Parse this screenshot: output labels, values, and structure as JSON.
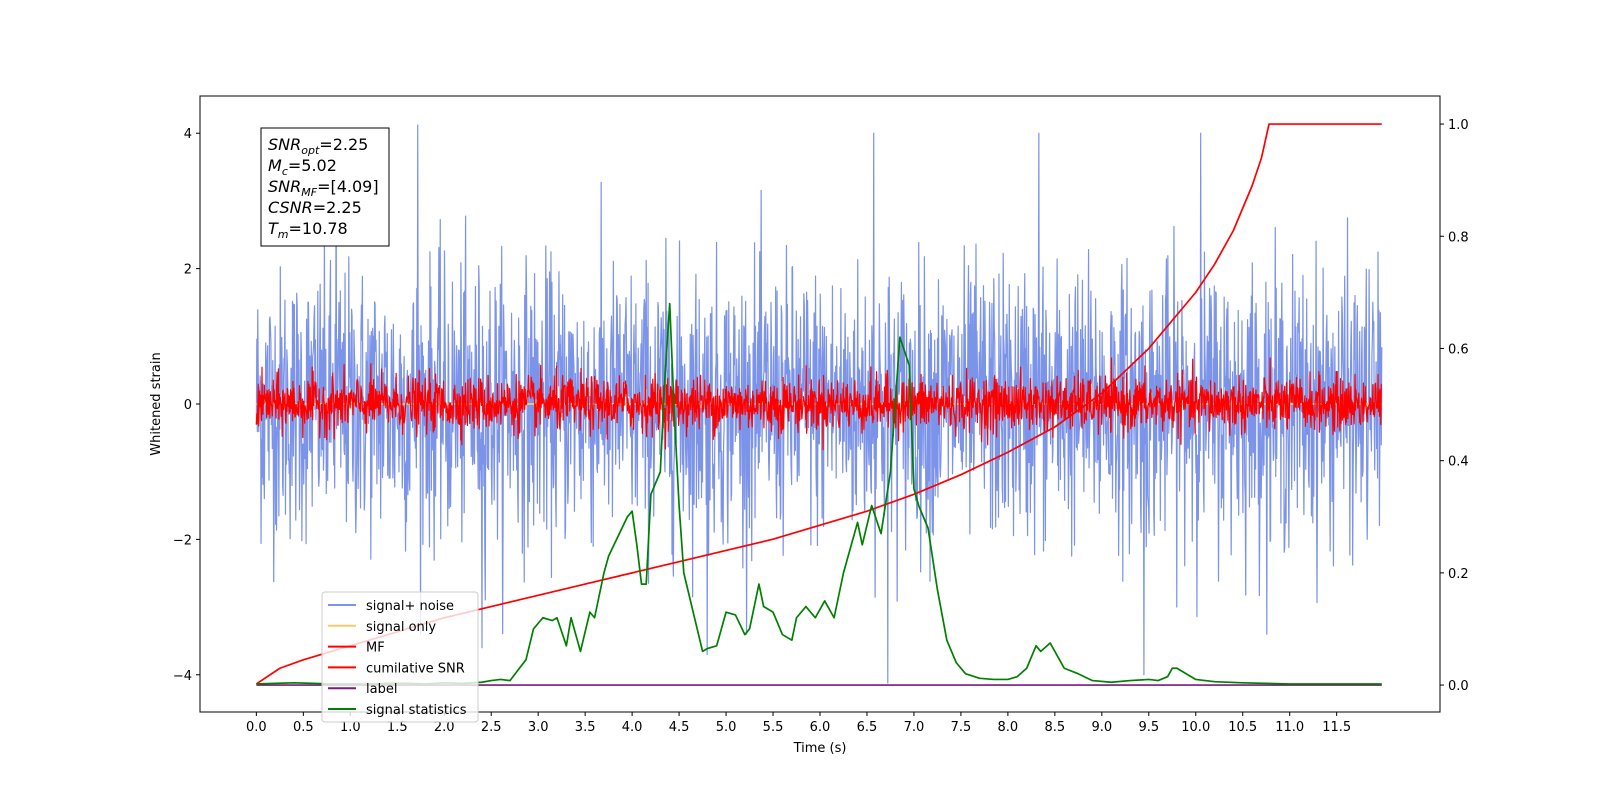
{
  "chart_data": {
    "type": "line",
    "title": "",
    "xlabel": "Time (s)",
    "ylabel": "Whitened strain",
    "y2label": "",
    "xlim": [
      -0.6,
      12.6
    ],
    "ylim": [
      -4.55,
      4.55
    ],
    "y2lim": [
      -0.048,
      1.05
    ],
    "xticks": [
      0.0,
      0.5,
      1.0,
      1.5,
      2.0,
      2.5,
      3.0,
      3.5,
      4.0,
      4.5,
      5.0,
      5.5,
      6.0,
      6.5,
      7.0,
      7.5,
      8.0,
      8.5,
      9.0,
      9.5,
      10.0,
      10.5,
      11.0,
      11.5
    ],
    "xtick_labels": [
      "0.0",
      "0.5",
      "1.0",
      "1.5",
      "2.0",
      "2.5",
      "3.0",
      "3.5",
      "4.0",
      "4.5",
      "5.0",
      "5.5",
      "6.0",
      "6.5",
      "7.0",
      "7.5",
      "8.0",
      "8.5",
      "9.0",
      "9.5",
      "10.0",
      "10.5",
      "11.0",
      "11.5"
    ],
    "yticks": [
      -4,
      -2,
      0,
      2,
      4
    ],
    "ytick_labels": [
      "−4",
      "−2",
      "0",
      "2",
      "4"
    ],
    "y2ticks": [
      0.0,
      0.2,
      0.4,
      0.6,
      0.8,
      1.0
    ],
    "y2tick_labels": [
      "0.0",
      "0.2",
      "0.4",
      "0.6",
      "0.8",
      "1.0"
    ],
    "legend_position": "lower-left",
    "grid": false,
    "annotation": {
      "lines": [
        {
          "main": "SNR",
          "sub": "opt",
          "rest": "=2.25"
        },
        {
          "main": "M",
          "sub": "c",
          "rest": "=5.02"
        },
        {
          "main": "SNR",
          "sub": "MF",
          "rest": "=[4.09]"
        },
        {
          "main": "CSNR",
          "sub": "",
          "rest": "=2.25"
        },
        {
          "main": "T",
          "sub": "m",
          "rest": "=10.78"
        }
      ]
    },
    "series": [
      {
        "name": "signal+ noise",
        "axis": "left",
        "color": "#7b93e8",
        "style": "noise",
        "t_range": [
          0.0,
          11.98
        ],
        "sample_count": 2400,
        "std": 1.0,
        "peaks": [
          {
            "t": 1.72,
            "v": 4.12
          },
          {
            "t": 0.85,
            "v": 3.9
          },
          {
            "t": 6.57,
            "v": 4.0
          },
          {
            "t": 8.33,
            "v": 4.0
          },
          {
            "t": 10.05,
            "v": 4.0
          },
          {
            "t": 6.72,
            "v": -4.12
          },
          {
            "t": 9.45,
            "v": -4.0
          },
          {
            "t": 4.8,
            "v": -3.7
          },
          {
            "t": 2.4,
            "v": -3.6
          }
        ]
      },
      {
        "name": "signal only",
        "axis": "left",
        "color": "#ffc96b",
        "style": "line",
        "x": [
          0.0,
          11.98
        ],
        "y": [
          0.0,
          0.0
        ]
      },
      {
        "name": "MF",
        "axis": "left",
        "color": "#ff0000",
        "style": "noise",
        "t_range": [
          0.0,
          11.98
        ],
        "sample_count": 2400,
        "std": 0.2
      },
      {
        "name": "cumilative SNR",
        "axis": "right",
        "color": "#ff0000",
        "style": "line",
        "x": [
          0.0,
          0.25,
          0.5,
          1.0,
          1.5,
          2.0,
          2.5,
          3.0,
          3.5,
          4.0,
          4.5,
          5.0,
          5.5,
          6.0,
          6.5,
          7.0,
          7.5,
          8.0,
          8.5,
          9.0,
          9.5,
          10.0,
          10.2,
          10.4,
          10.6,
          10.7,
          10.78,
          11.98
        ],
        "y": [
          0.002,
          0.03,
          0.045,
          0.07,
          0.095,
          0.12,
          0.14,
          0.16,
          0.18,
          0.2,
          0.22,
          0.24,
          0.26,
          0.285,
          0.31,
          0.34,
          0.375,
          0.415,
          0.46,
          0.52,
          0.6,
          0.7,
          0.75,
          0.81,
          0.89,
          0.94,
          1.0,
          1.0
        ]
      },
      {
        "name": "label",
        "axis": "right",
        "color": "#7a1a7a",
        "style": "line",
        "x": [
          0.0,
          11.98
        ],
        "y": [
          0.0,
          0.0
        ]
      },
      {
        "name": "signal statistics",
        "axis": "right",
        "color": "#008000",
        "style": "line",
        "x": [
          0.0,
          0.2,
          0.4,
          0.6,
          0.8,
          1.0,
          1.2,
          1.4,
          1.6,
          1.8,
          2.0,
          2.2,
          2.4,
          2.5,
          2.6,
          2.7,
          2.8,
          2.87,
          2.95,
          3.05,
          3.15,
          3.2,
          3.3,
          3.35,
          3.45,
          3.55,
          3.6,
          3.7,
          3.75,
          3.85,
          3.95,
          4.0,
          4.05,
          4.1,
          4.15,
          4.2,
          4.3,
          4.35,
          4.4,
          4.45,
          4.5,
          4.55,
          4.65,
          4.75,
          4.8,
          4.9,
          5.0,
          5.1,
          5.2,
          5.25,
          5.35,
          5.4,
          5.5,
          5.6,
          5.7,
          5.75,
          5.85,
          5.95,
          6.05,
          6.15,
          6.25,
          6.3,
          6.4,
          6.45,
          6.55,
          6.65,
          6.75,
          6.85,
          6.95,
          7.0,
          7.05,
          7.15,
          7.25,
          7.35,
          7.45,
          7.55,
          7.7,
          7.85,
          8.0,
          8.1,
          8.2,
          8.3,
          8.35,
          8.45,
          8.55,
          8.6,
          8.75,
          8.9,
          9.1,
          9.3,
          9.5,
          9.6,
          9.7,
          9.75,
          9.8,
          9.9,
          10.0,
          10.2,
          10.5,
          11.0,
          11.5,
          11.98
        ],
        "y": [
          0.002,
          0.003,
          0.004,
          0.003,
          0.002,
          0.002,
          0.002,
          0.003,
          0.003,
          0.002,
          0.004,
          0.003,
          0.005,
          0.008,
          0.01,
          0.008,
          0.03,
          0.045,
          0.1,
          0.12,
          0.115,
          0.12,
          0.07,
          0.12,
          0.06,
          0.13,
          0.12,
          0.2,
          0.23,
          0.265,
          0.3,
          0.31,
          0.25,
          0.18,
          0.18,
          0.34,
          0.38,
          0.55,
          0.68,
          0.48,
          0.32,
          0.2,
          0.13,
          0.06,
          0.065,
          0.07,
          0.13,
          0.125,
          0.09,
          0.1,
          0.18,
          0.14,
          0.13,
          0.09,
          0.08,
          0.12,
          0.14,
          0.12,
          0.15,
          0.12,
          0.2,
          0.23,
          0.29,
          0.25,
          0.32,
          0.27,
          0.38,
          0.62,
          0.57,
          0.35,
          0.32,
          0.28,
          0.17,
          0.08,
          0.04,
          0.02,
          0.012,
          0.01,
          0.01,
          0.015,
          0.03,
          0.07,
          0.06,
          0.075,
          0.045,
          0.03,
          0.02,
          0.008,
          0.005,
          0.008,
          0.01,
          0.008,
          0.015,
          0.03,
          0.03,
          0.02,
          0.01,
          0.006,
          0.004,
          0.002,
          0.002,
          0.002
        ]
      }
    ]
  }
}
